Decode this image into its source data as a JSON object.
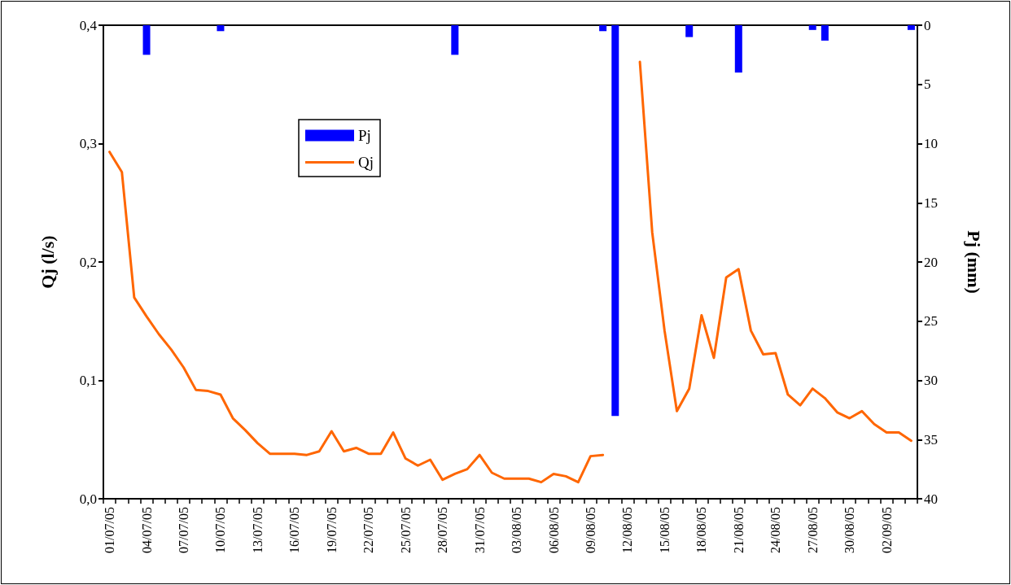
{
  "chart_data": {
    "type": "line",
    "ylabel": "Qj (l/s)",
    "y2label": "Pj (mm)",
    "categories": [
      "01/07/05",
      null,
      null,
      "04/07/05",
      null,
      null,
      "07/07/05",
      null,
      null,
      "10/07/05",
      null,
      null,
      "13/07/05",
      null,
      null,
      "16/07/05",
      null,
      null,
      "19/07/05",
      null,
      null,
      "22/07/05",
      null,
      null,
      "25/07/05",
      null,
      null,
      "28/07/05",
      null,
      null,
      "31/07/05",
      null,
      null,
      "03/08/05",
      null,
      null,
      "06/08/05",
      null,
      null,
      "09/08/05",
      null,
      null,
      "12/08/05",
      null,
      null,
      "15/08/05",
      null,
      null,
      "18/08/05",
      null,
      null,
      "21/08/05",
      null,
      null,
      "24/08/05",
      null,
      null,
      "27/08/05",
      null,
      null,
      "30/08/05",
      null,
      null,
      "02/09/05",
      null,
      null
    ],
    "series": [
      {
        "name": "Pj",
        "type": "bar",
        "axis": "y2",
        "color": "#0000ff",
        "values": [
          null,
          null,
          null,
          2.5,
          null,
          null,
          null,
          null,
          null,
          0.5,
          null,
          null,
          null,
          null,
          null,
          null,
          null,
          null,
          null,
          null,
          null,
          null,
          null,
          null,
          null,
          null,
          null,
          null,
          2.5,
          null,
          null,
          null,
          null,
          null,
          null,
          null,
          null,
          null,
          null,
          null,
          0.5,
          33,
          null,
          null,
          null,
          null,
          null,
          1,
          null,
          null,
          null,
          4,
          null,
          null,
          null,
          null,
          null,
          0.4,
          1.3,
          null,
          null,
          null,
          null,
          null,
          null,
          0.4
        ]
      },
      {
        "name": "Qj",
        "color": "#ff6600",
        "values": [
          0.293,
          0.276,
          0.17,
          0.154,
          0.139,
          0.126,
          0.111,
          0.092,
          0.091,
          0.088,
          0.068,
          0.058,
          0.047,
          0.038,
          0.038,
          0.038,
          0.037,
          0.04,
          0.057,
          0.04,
          0.043,
          0.038,
          0.038,
          0.056,
          0.034,
          0.028,
          0.033,
          0.016,
          0.021,
          0.025,
          0.037,
          0.022,
          0.017,
          0.017,
          0.017,
          0.014,
          0.021,
          0.019,
          0.014,
          0.036,
          0.037,
          null,
          null,
          0.369,
          0.225,
          0.142,
          0.074,
          0.093,
          0.155,
          0.119,
          0.187,
          0.194,
          0.142,
          0.122,
          0.123,
          0.088,
          0.079,
          0.093,
          0.085,
          0.073,
          0.068,
          0.074,
          0.063,
          0.056,
          0.056,
          0.049
        ]
      }
    ],
    "ylim": [
      0,
      0.4
    ],
    "yticks": [
      {
        "value": 0,
        "label": "0,0"
      },
      {
        "value": 0.1,
        "label": "0,1"
      },
      {
        "value": 0.2,
        "label": "0,2"
      },
      {
        "value": 0.3,
        "label": "0,3"
      },
      {
        "value": 0.4,
        "label": "0,4"
      }
    ],
    "y2lim": [
      40,
      0
    ],
    "y2ticks": [
      0,
      5,
      10,
      15,
      20,
      25,
      30,
      35,
      40
    ],
    "legend": "top left",
    "marker": "none",
    "line_style": "solid",
    "grid": false
  }
}
